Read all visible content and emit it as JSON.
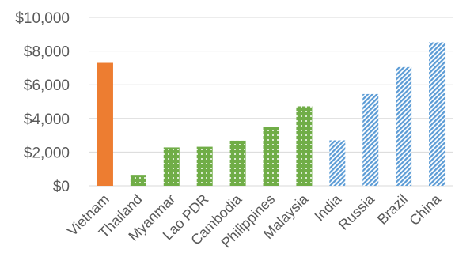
{
  "chart_data": {
    "type": "bar",
    "title": "",
    "xlabel": "",
    "ylabel": "",
    "ylim": [
      0,
      10000
    ],
    "yticks": [
      "$0",
      "$2,000",
      "$4,000",
      "$6,000",
      "$8,000",
      "$10,000"
    ],
    "grid": true,
    "legend": "none",
    "categories": [
      "Vietnam",
      "Thailand",
      "Myanmar",
      "Lao PDR",
      "Cambodia",
      "Philippines",
      "Malaysia",
      "India",
      "Russia",
      "Brazil",
      "China"
    ],
    "values": [
      7300,
      650,
      2280,
      2320,
      2680,
      3480,
      4720,
      2700,
      5450,
      7050,
      8520
    ],
    "bar_styles": [
      "solid-orange",
      "dotted-green",
      "dotted-green",
      "dotted-green",
      "dotted-green",
      "dotted-green",
      "dotted-green",
      "striped-blue",
      "striped-blue",
      "striped-blue",
      "striped-blue"
    ],
    "colors": {
      "orange": "#ED7D31",
      "green": "#70AD47",
      "blue": "#5B9BD5",
      "grid": "#D9D9D9",
      "text": "#595959"
    }
  }
}
